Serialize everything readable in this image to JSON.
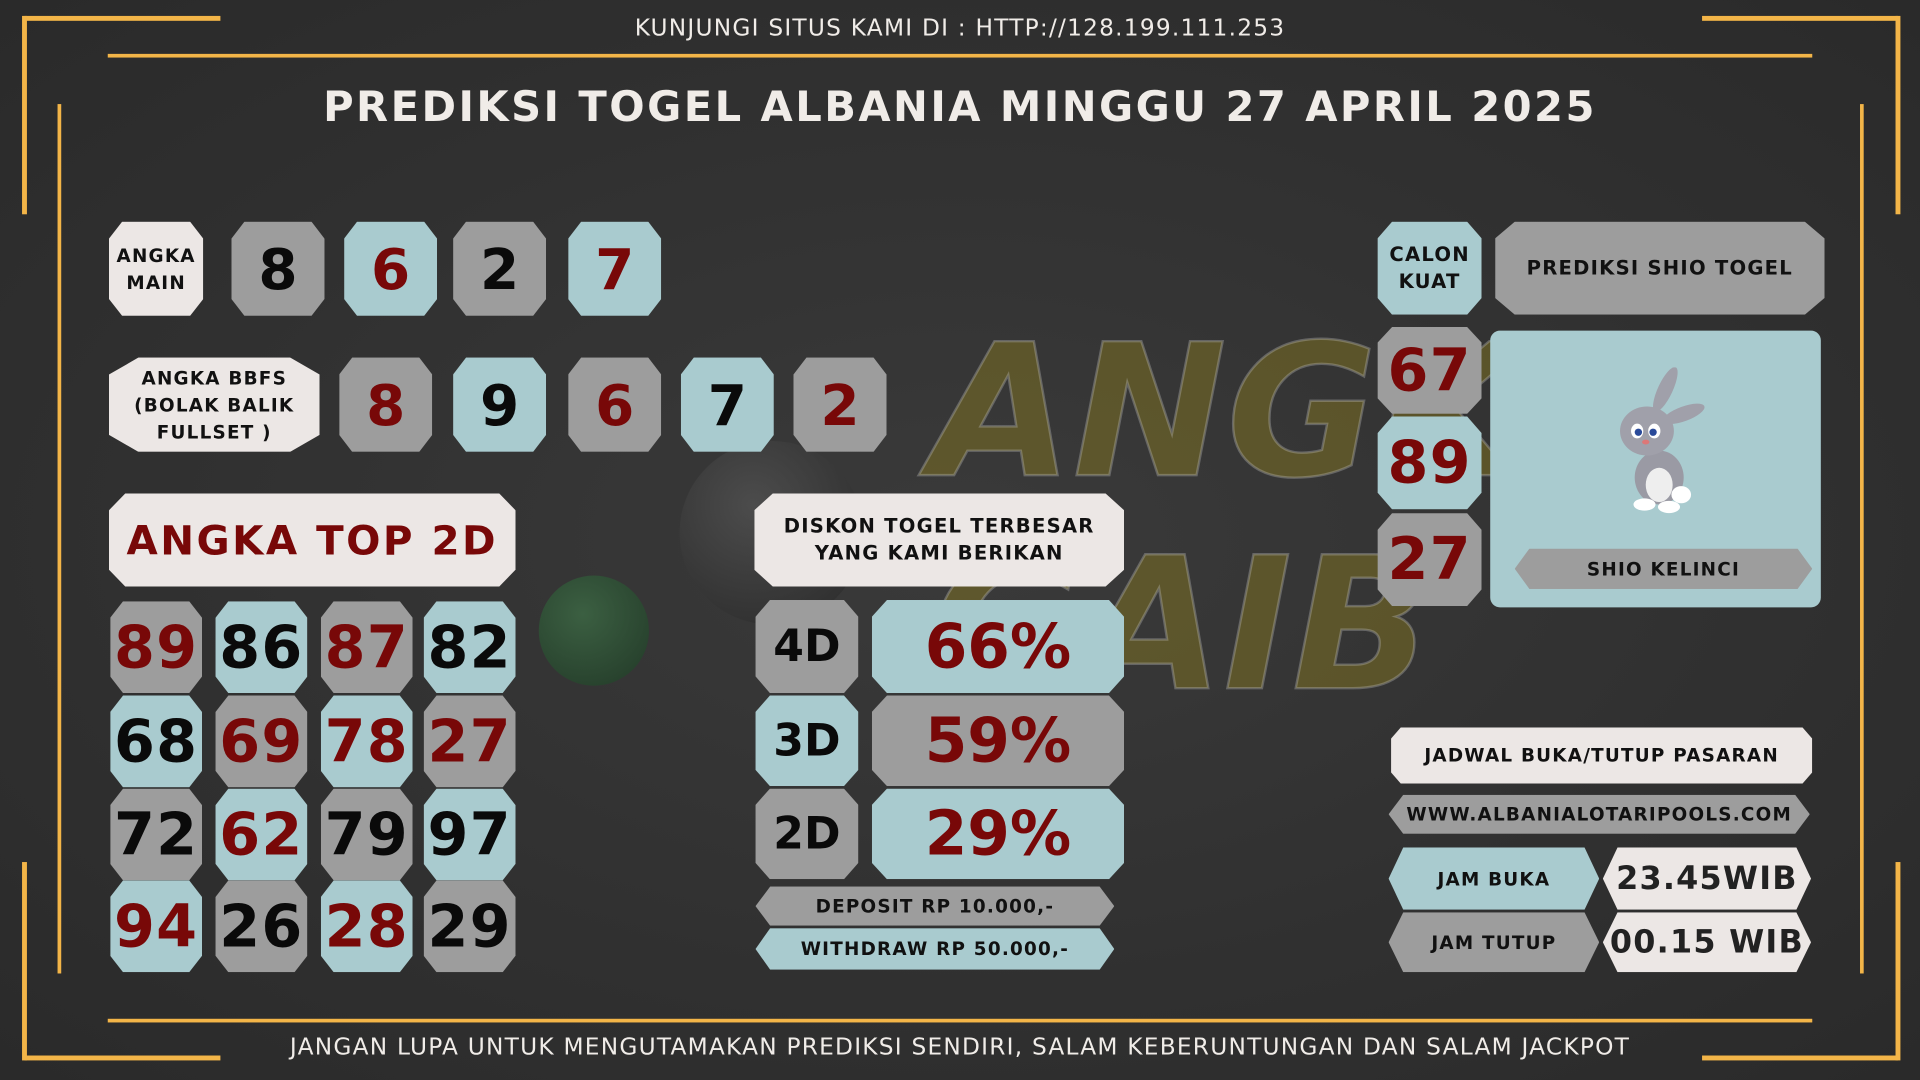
{
  "header": {
    "site_text": "KUNJUNGI SITUS KAMI DI : HTTP://128.199.111.253",
    "title": "PREDIKSI TOGEL ALBANIA MINGGU 27 APRIL 2025"
  },
  "footer": {
    "text": "JANGAN LUPA UNTUK MENGUTAMAKAN PREDIKSI SENDIRI, SALAM KEBERUNTUNGAN DAN SALAM JACKPOT"
  },
  "watermark": "ANGKA GAIB",
  "angka_main": {
    "label_1": "ANGKA",
    "label_2": "MAIN",
    "numbers": [
      "8",
      "6",
      "2",
      "7"
    ]
  },
  "bbfs": {
    "label_1": "ANGKA BBFS",
    "label_2": "(BOLAK BALIK",
    "label_3": "FULLSET )",
    "numbers": [
      "8",
      "9",
      "6",
      "7",
      "2"
    ]
  },
  "top2d": {
    "title": "ANGKA TOP 2D",
    "numbers": [
      "89",
      "86",
      "87",
      "82",
      "68",
      "69",
      "78",
      "27",
      "72",
      "62",
      "79",
      "97",
      "94",
      "26",
      "28",
      "29"
    ]
  },
  "diskon": {
    "title_1": "DISKON TOGEL TERBESAR",
    "title_2": "YANG KAMI BERIKAN",
    "rows": [
      {
        "type": "4D",
        "value": "66%"
      },
      {
        "type": "3D",
        "value": "59%"
      },
      {
        "type": "2D",
        "value": "29%"
      }
    ],
    "deposit": "DEPOSIT RP 10.000,-",
    "withdraw": "WITHDRAW RP 50.000,-"
  },
  "calon_kuat": {
    "label_1": "CALON",
    "label_2": "KUAT",
    "numbers": [
      "67",
      "89",
      "27"
    ]
  },
  "shio": {
    "title": "PREDIKSI SHIO TOGEL",
    "name": "SHIO KELINCI",
    "icon": "rabbit-icon"
  },
  "jadwal": {
    "title": "JADWAL BUKA/TUTUP PASARAN",
    "website": "WWW.ALBANIALOTARIPOOLS.COM",
    "buka_label": "JAM BUKA",
    "buka_value": "23.45WIB",
    "tutup_label": "JAM TUTUP",
    "tutup_value": "00.15 WIB"
  },
  "colors": {
    "frame": "#f3b548",
    "gray": "#9d9d9d",
    "blue": "#a9cbcf",
    "white": "#ece7e5",
    "red": "#780808"
  }
}
